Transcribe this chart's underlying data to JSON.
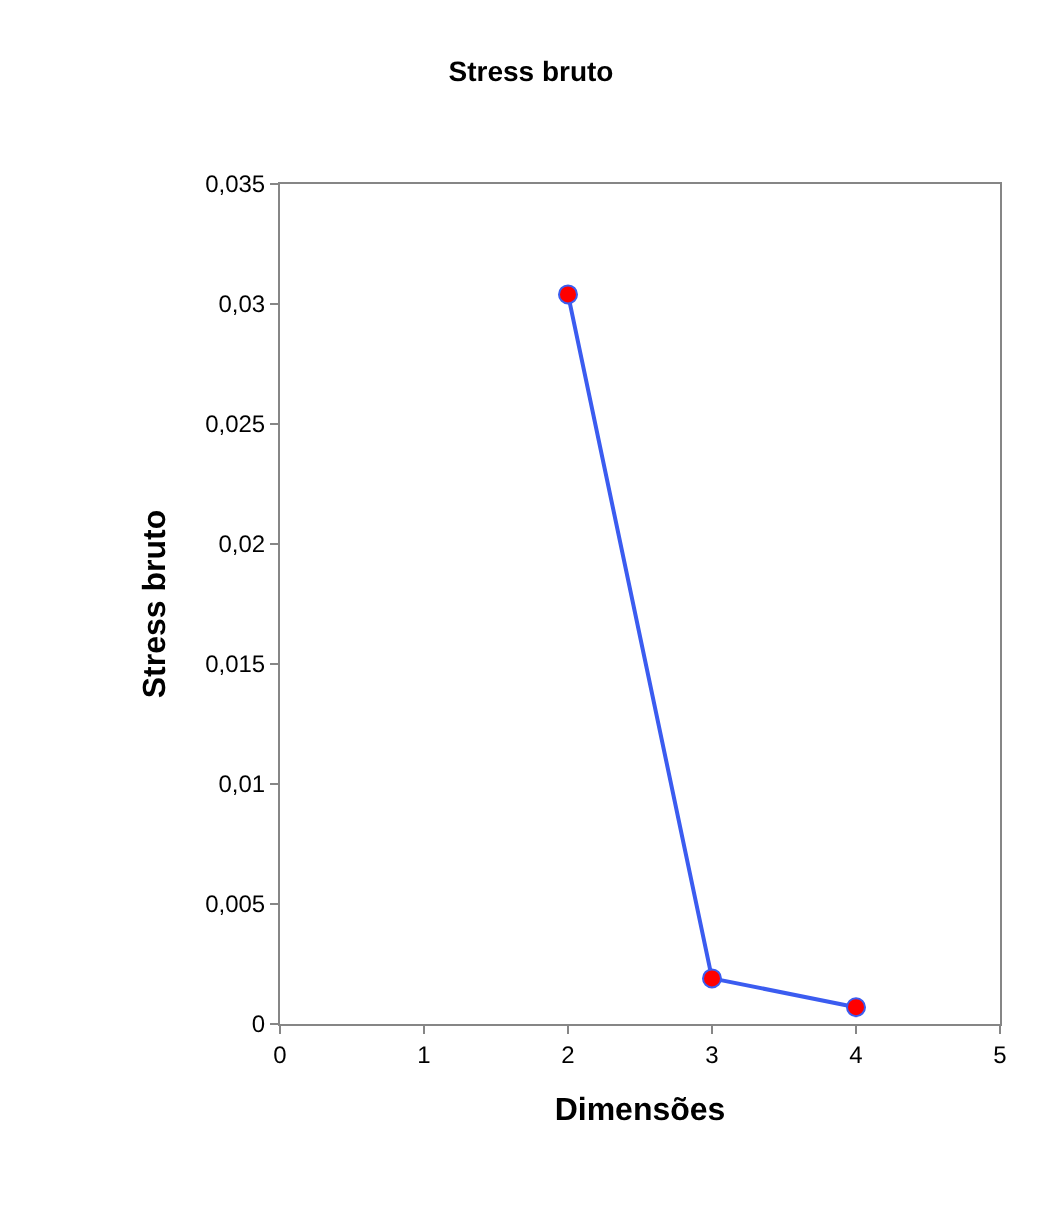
{
  "chart_data": {
    "type": "line",
    "title": "Stress bruto",
    "xlabel": "Dimensões",
    "ylabel": "Stress bruto",
    "x": [
      2,
      3,
      4
    ],
    "series": [
      {
        "color": "#3b5cf0",
        "colors": [
          "#ff0000",
          "#ff0000",
          "#ff0000"
        ],
        "values": [
          0.0304,
          0.0019,
          0.0007
        ]
      }
    ],
    "xlim": [
      0,
      5
    ],
    "xticks": [
      0,
      1,
      2,
      3,
      4,
      5
    ],
    "ylim": [
      0,
      0.035
    ],
    "yticks": [
      {
        "value": 0,
        "label": "0"
      },
      {
        "value": 0.005,
        "label": "0,005"
      },
      {
        "value": 0.01,
        "label": "0,01"
      },
      {
        "value": 0.015,
        "label": "0,015"
      },
      {
        "value": 0.02,
        "label": "0,02"
      },
      {
        "value": 0.025,
        "label": "0,025"
      },
      {
        "value": 0.03,
        "label": "0,03"
      },
      {
        "value": 0.035,
        "label": "0,035"
      }
    ],
    "grid": false,
    "legend": false,
    "marker": "circle",
    "line_style": "solid"
  }
}
